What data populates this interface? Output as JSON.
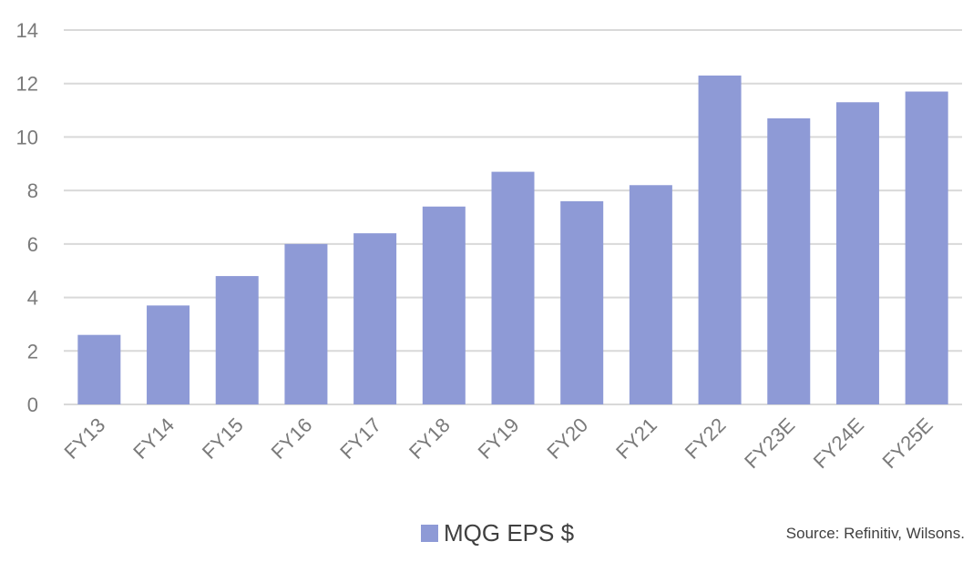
{
  "chart_data": {
    "type": "bar",
    "categories": [
      "FY13",
      "FY14",
      "FY15",
      "FY16",
      "FY17",
      "FY18",
      "FY19",
      "FY20",
      "FY21",
      "FY22",
      "FY23E",
      "FY24E",
      "FY25E"
    ],
    "series": [
      {
        "name": "MQG EPS $",
        "values": [
          2.6,
          3.7,
          4.8,
          6.0,
          6.4,
          7.4,
          8.7,
          7.6,
          8.2,
          12.3,
          10.7,
          11.3,
          11.7
        ]
      }
    ],
    "ylim": [
      0,
      14
    ],
    "yticks": [
      0,
      2,
      4,
      6,
      8,
      10,
      12,
      14
    ],
    "ytick_labels": [
      "0",
      "2",
      "4",
      "6",
      "8",
      "10",
      "12",
      "14"
    ],
    "title": "",
    "xlabel": "",
    "ylabel": "",
    "grid": true,
    "legend_position": "bottom",
    "bar_color": "#8e9ad6"
  },
  "legend": {
    "label": "MQG EPS $"
  },
  "source": "Source: Refinitiv, Wilsons."
}
